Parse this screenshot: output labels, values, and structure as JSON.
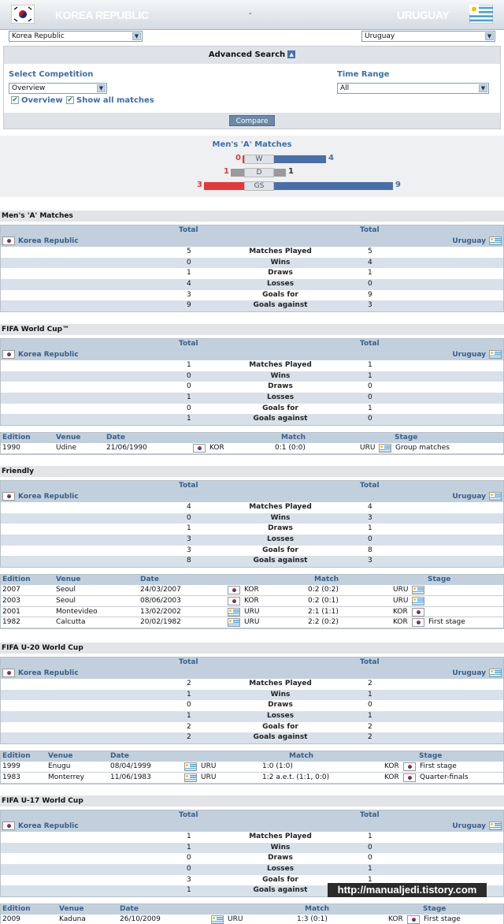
{
  "header": {
    "home": "KOREA REPUBLIC",
    "separator": "-",
    "away": "URUGUAY"
  },
  "selectors": {
    "home_value": "Korea Republic",
    "away_value": "Uruguay"
  },
  "advanced": {
    "title": "Advanced Search",
    "competition_label": "Select Competition",
    "competition_value": "Overview",
    "time_label": "Time Range",
    "time_value": "All",
    "overview_check": "Overview",
    "showall_check": "Show all matches",
    "compare_label": "Compare"
  },
  "summary": {
    "title": "Men's 'A' Matches",
    "rows": [
      {
        "label": "W",
        "home": "0",
        "away": "4",
        "home_val": 0,
        "away_val": 4
      },
      {
        "label": "D",
        "home": "1",
        "away": "1",
        "home_val": 1,
        "away_val": 1
      },
      {
        "label": "GS",
        "home": "3",
        "away": "9",
        "home_val": 3,
        "away_val": 9
      }
    ]
  },
  "table_labels": {
    "total": "Total",
    "home_team": "Korea Republic",
    "away_team": "Uruguay",
    "stats": [
      "Matches Played",
      "Wins",
      "Draws",
      "Losses",
      "Goals for",
      "Goals against"
    ],
    "match_cols": [
      "Edition",
      "Venue",
      "Date",
      "Match",
      "Stage"
    ]
  },
  "sections": [
    {
      "title": "Men's 'A' Matches",
      "home": [
        "5",
        "0",
        "1",
        "4",
        "3",
        "9"
      ],
      "away": [
        "5",
        "4",
        "1",
        "0",
        "9",
        "3"
      ],
      "matches": []
    },
    {
      "title": "FIFA World Cup™",
      "home": [
        "1",
        "0",
        "0",
        "1",
        "0",
        "1"
      ],
      "away": [
        "1",
        "1",
        "0",
        "0",
        "1",
        "0"
      ],
      "matches": [
        {
          "edition": "1990",
          "venue": "Udine",
          "date": "21/06/1990",
          "left": "KOR",
          "left_flag": "kor",
          "score": "0:1 (0:0)",
          "right": "URU",
          "right_flag": "uru",
          "stage": "Group matches"
        }
      ]
    },
    {
      "title": "Friendly",
      "home": [
        "4",
        "0",
        "1",
        "3",
        "3",
        "8"
      ],
      "away": [
        "4",
        "3",
        "1",
        "0",
        "8",
        "3"
      ],
      "matches": [
        {
          "edition": "2007",
          "venue": "Seoul",
          "date": "24/03/2007",
          "left": "KOR",
          "left_flag": "kor",
          "score": "0:2 (0:2)",
          "right": "URU",
          "right_flag": "uru",
          "stage": ""
        },
        {
          "edition": "2003",
          "venue": "Seoul",
          "date": "08/06/2003",
          "left": "KOR",
          "left_flag": "kor",
          "score": "0:2 (0:1)",
          "right": "URU",
          "right_flag": "uru",
          "stage": ""
        },
        {
          "edition": "2001",
          "venue": "Montevideo",
          "date": "13/02/2002",
          "left": "URU",
          "left_flag": "uru",
          "score": "2:1 (1:1)",
          "right": "KOR",
          "right_flag": "kor",
          "stage": ""
        },
        {
          "edition": "1982",
          "venue": "Calcutta",
          "date": "20/02/1982",
          "left": "URU",
          "left_flag": "uru",
          "score": "2:2 (0:2)",
          "right": "KOR",
          "right_flag": "kor",
          "stage": "First stage"
        }
      ]
    },
    {
      "title": "FIFA U-20 World Cup",
      "home": [
        "2",
        "1",
        "0",
        "1",
        "2",
        "2"
      ],
      "away": [
        "2",
        "1",
        "0",
        "1",
        "2",
        "2"
      ],
      "matches": [
        {
          "edition": "1999",
          "venue": "Enugu",
          "date": "08/04/1999",
          "left": "URU",
          "left_flag": "uru",
          "score": "1:0 (1:0)",
          "right": "KOR",
          "right_flag": "kor",
          "stage": "First stage"
        },
        {
          "edition": "1983",
          "venue": "Monterrey",
          "date": "11/06/1983",
          "left": "URU",
          "left_flag": "uru",
          "score": "1:2 a.e.t. (1:1, 0:0)",
          "right": "KOR",
          "right_flag": "kor",
          "stage": "Quarter-finals"
        }
      ]
    },
    {
      "title": "FIFA U-17 World Cup",
      "home": [
        "1",
        "1",
        "0",
        "0",
        "3",
        "1"
      ],
      "away": [
        "1",
        "0",
        "0",
        "1",
        "1",
        "3"
      ],
      "matches": [
        {
          "edition": "2009",
          "venue": "Kaduna",
          "date": "26/10/2009",
          "left": "URU",
          "left_flag": "uru",
          "score": "1:3 (0:1)",
          "right": "KOR",
          "right_flag": "kor",
          "stage": "First stage"
        }
      ]
    }
  ],
  "watermark": "http://manualjedi.tistory.com",
  "colors": {
    "accent": "#3c6db0",
    "home_bar": "#e23a3a",
    "away_bar": "#4a6fa8",
    "draw_bar": "#9a9a9a"
  }
}
